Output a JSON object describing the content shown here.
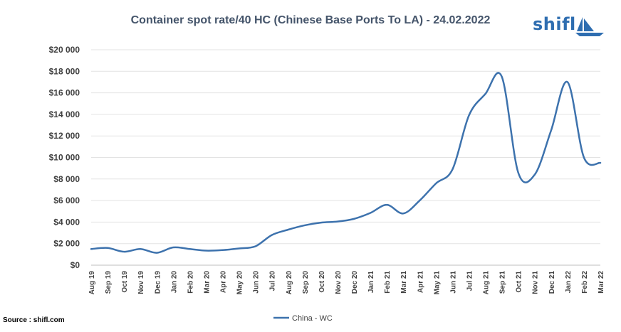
{
  "chart_data": {
    "type": "line",
    "title": "Container spot rate/40 HC (Chinese Base Ports To LA) - 24.02.2022",
    "categories": [
      "Aug 19",
      "Sep 19",
      "Oct 19",
      "Nov 19",
      "Dec 19",
      "Jan 20",
      "Feb 20",
      "Mar 20",
      "Apr 20",
      "May 20",
      "Jun 20",
      "Jul 20",
      "Aug 20",
      "Sep 20",
      "Oct 20",
      "Nov 20",
      "Dec 20",
      "Jan 21",
      "Feb 21",
      "Mar 21",
      "Apr 21",
      "May 21",
      "Jun 21",
      "Jul 21",
      "Aug 21",
      "Sep 21",
      "Oct 21",
      "Nov 21",
      "Dec 21",
      "Jan 22",
      "Feb 22",
      "Mar 22"
    ],
    "series": [
      {
        "name": "China - WC",
        "color": "#3d72ad",
        "values": [
          1500,
          1600,
          1250,
          1500,
          1150,
          1650,
          1500,
          1350,
          1400,
          1550,
          1750,
          2800,
          3300,
          3700,
          3950,
          4050,
          4300,
          4850,
          5600,
          4800,
          6000,
          7600,
          8900,
          13900,
          15900,
          17500,
          8600,
          8400,
          12500,
          17000,
          10000,
          9500
        ]
      }
    ],
    "ylim": [
      0,
      20000
    ],
    "yticks": [
      0,
      2000,
      4000,
      6000,
      8000,
      10000,
      12000,
      14000,
      16000,
      18000,
      20000
    ],
    "ytick_labels": [
      "$0",
      "$2 000",
      "$4 000",
      "$6 000",
      "$8 000",
      "$10 000",
      "$12 000",
      "$14 000",
      "$16 000",
      "$18 000",
      "$20 000"
    ],
    "grid": true,
    "legend": "bottom-center",
    "xlabel": "",
    "ylabel": ""
  },
  "logo": {
    "text": "shifl"
  },
  "source": "Source : shifl.com"
}
